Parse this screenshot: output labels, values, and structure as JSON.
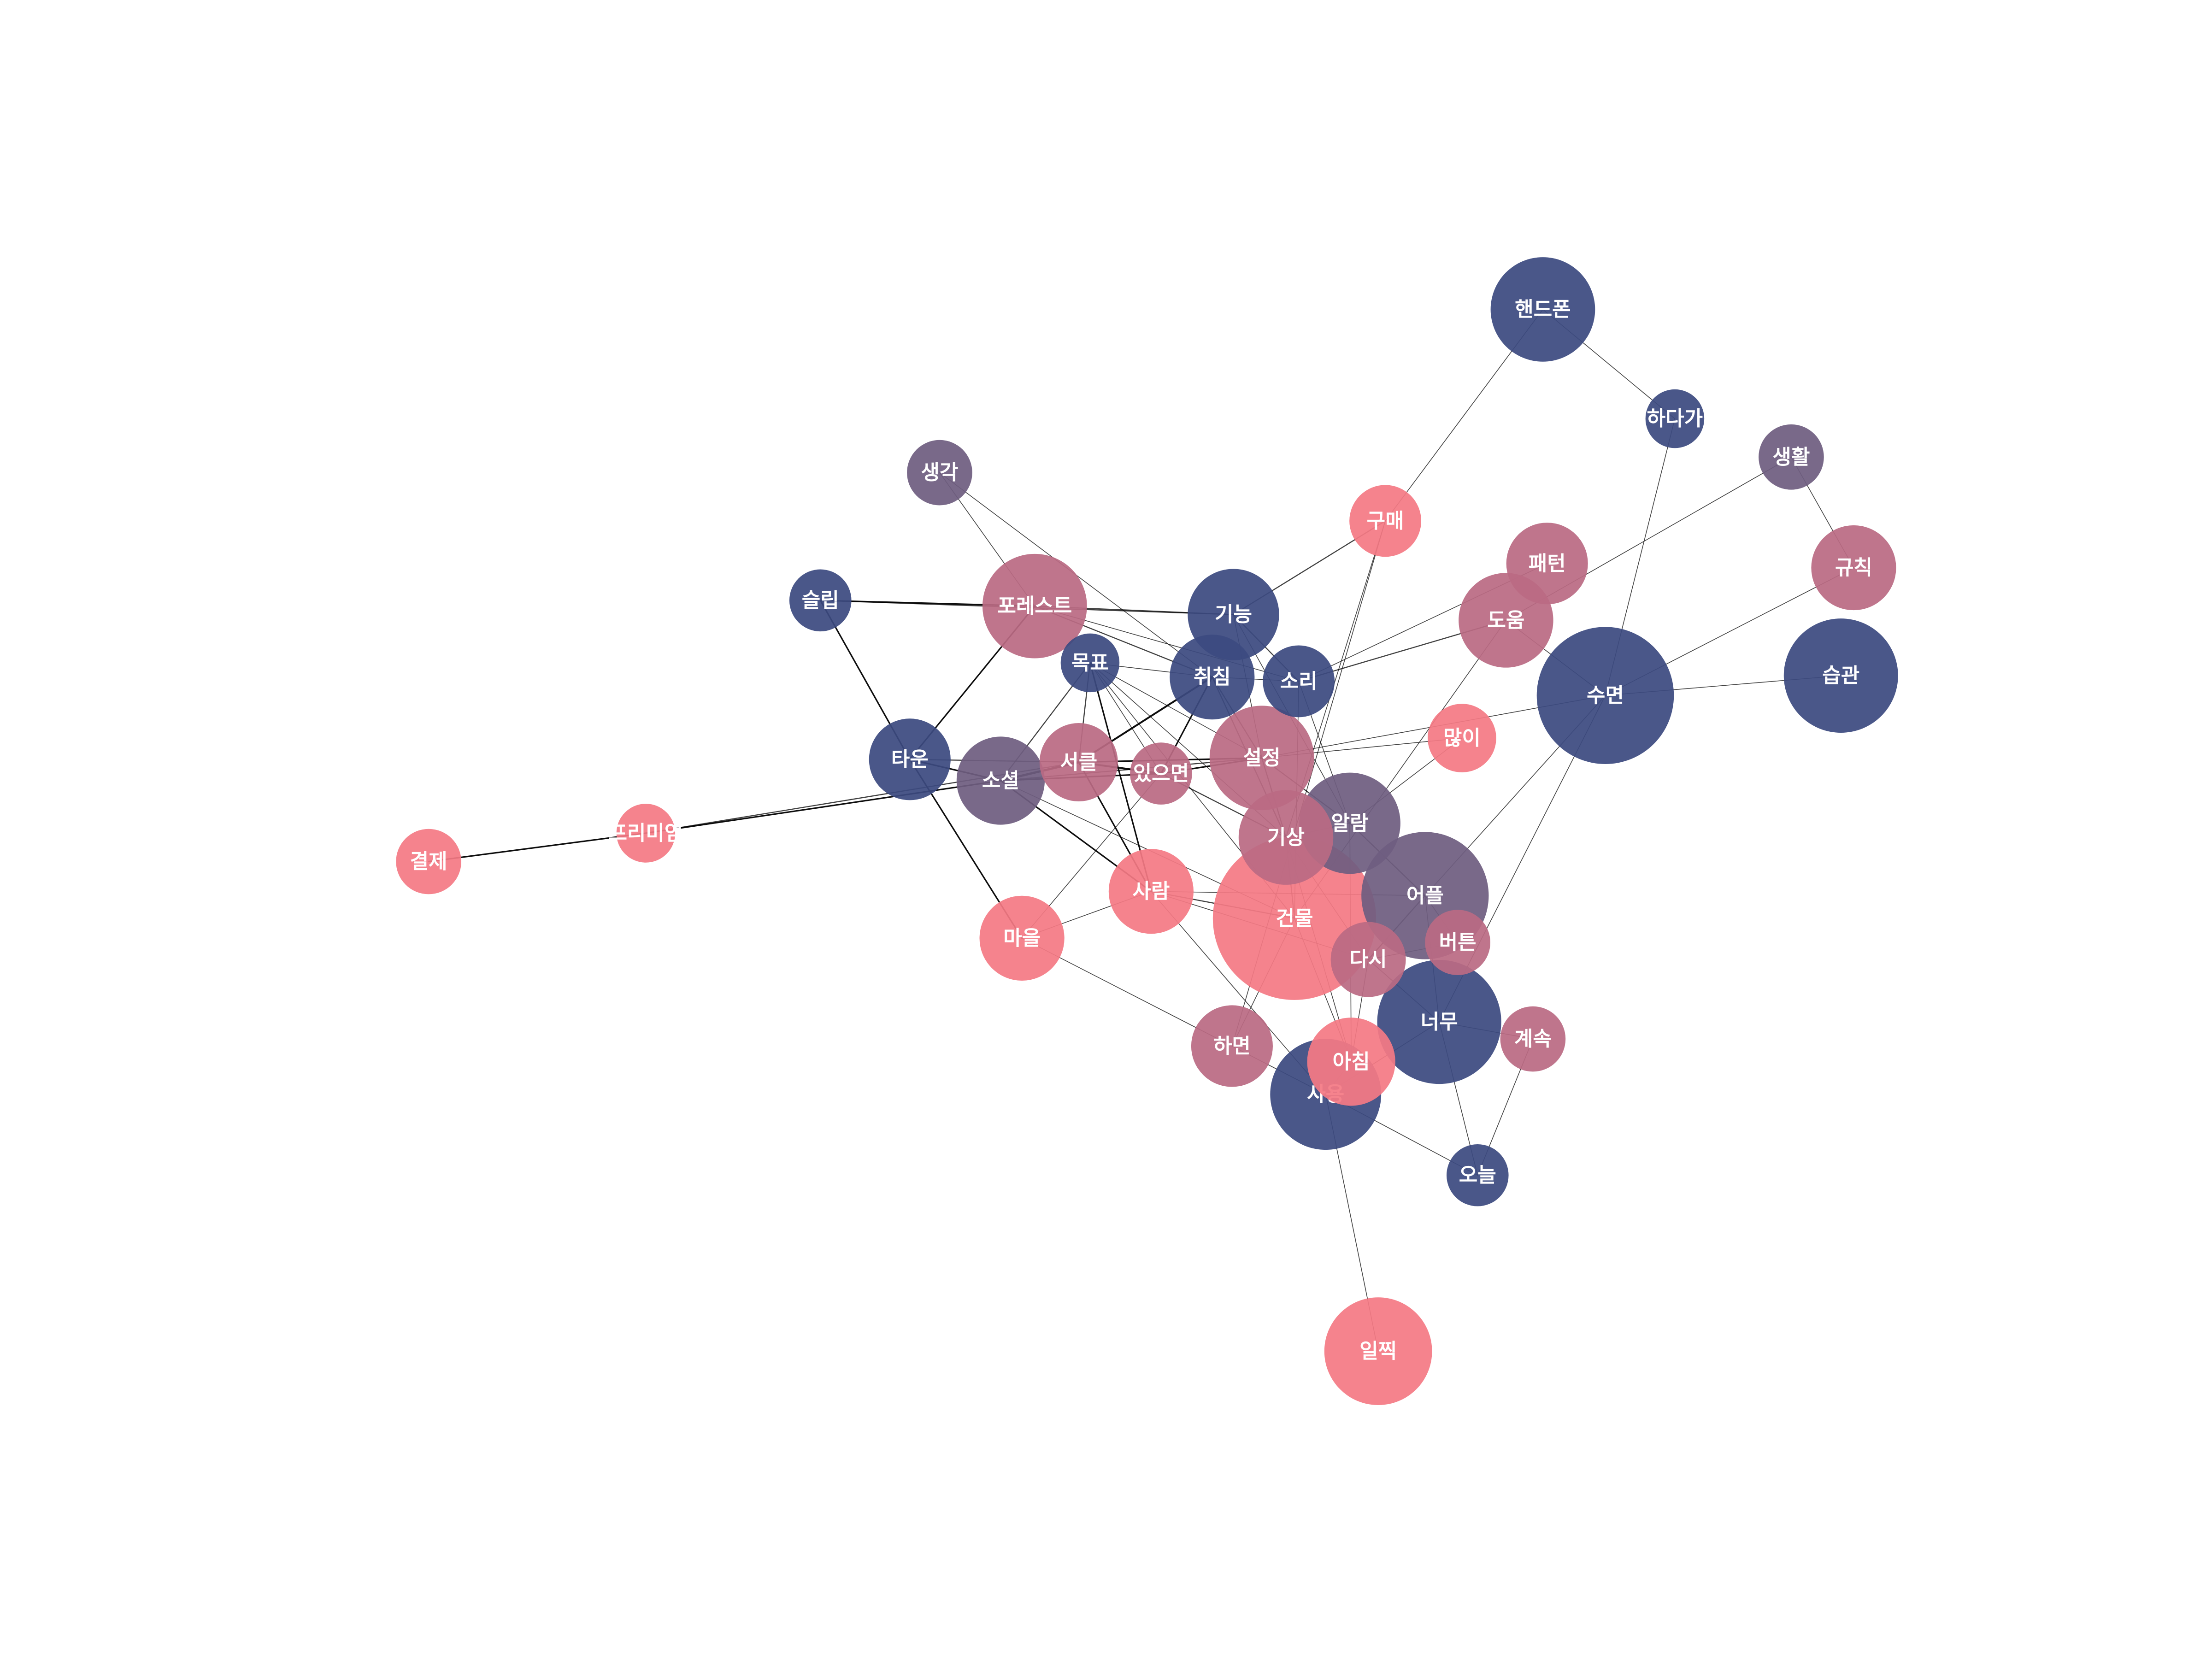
{
  "palette": {
    "pink": "#F47A84",
    "rose": "#BA6A83",
    "mauve": "#6F5E80",
    "navy": "#3C4A80",
    "edge": "#000000"
  },
  "nodes": [
    {
      "id": "결제",
      "label": "결제",
      "group": "pink",
      "weight": 1.0
    },
    {
      "id": "프리미엄",
      "label": "프리미엄",
      "group": "pink",
      "weight": 0.9
    },
    {
      "id": "생각",
      "label": "생각",
      "group": "mauve",
      "weight": 1.0
    },
    {
      "id": "슬립",
      "label": "슬립",
      "group": "navy",
      "weight": 0.95
    },
    {
      "id": "포레스트",
      "label": "포레스트",
      "group": "rose",
      "weight": 1.6
    },
    {
      "id": "타운",
      "label": "타운",
      "group": "navy",
      "weight": 1.25
    },
    {
      "id": "소셜",
      "label": "소셜",
      "group": "mauve",
      "weight": 1.35
    },
    {
      "id": "목표",
      "label": "목표",
      "group": "navy",
      "weight": 0.9
    },
    {
      "id": "서클",
      "label": "서클",
      "group": "rose",
      "weight": 1.2
    },
    {
      "id": "있으면",
      "label": "있으면",
      "group": "rose",
      "weight": 0.95
    },
    {
      "id": "기능",
      "label": "기능",
      "group": "navy",
      "weight": 1.4
    },
    {
      "id": "취침",
      "label": "취침",
      "group": "navy",
      "weight": 1.3
    },
    {
      "id": "소리",
      "label": "소리",
      "group": "navy",
      "weight": 1.1
    },
    {
      "id": "설정",
      "label": "설정",
      "group": "rose",
      "weight": 1.6
    },
    {
      "id": "마을",
      "label": "마을",
      "group": "pink",
      "weight": 1.3
    },
    {
      "id": "사람",
      "label": "사람",
      "group": "pink",
      "weight": 1.3
    },
    {
      "id": "기상",
      "label": "기상",
      "group": "rose",
      "weight": 1.45
    },
    {
      "id": "알람",
      "label": "알람",
      "group": "mauve",
      "weight": 1.55
    },
    {
      "id": "건물",
      "label": "건물",
      "group": "pink",
      "weight": 2.5
    },
    {
      "id": "구매",
      "label": "구매",
      "group": "pink",
      "weight": 1.1
    },
    {
      "id": "핸드폰",
      "label": "핸드폰",
      "group": "navy",
      "weight": 1.6
    },
    {
      "id": "하다가",
      "label": "하다가",
      "group": "navy",
      "weight": 0.9
    },
    {
      "id": "생활",
      "label": "생활",
      "group": "mauve",
      "weight": 1.0
    },
    {
      "id": "규칙",
      "label": "규칙",
      "group": "rose",
      "weight": 1.3
    },
    {
      "id": "패턴",
      "label": "패턴",
      "group": "rose",
      "weight": 1.25
    },
    {
      "id": "도움",
      "label": "도움",
      "group": "rose",
      "weight": 1.45
    },
    {
      "id": "수면",
      "label": "수면",
      "group": "navy",
      "weight": 2.1
    },
    {
      "id": "습관",
      "label": "습관",
      "group": "navy",
      "weight": 1.75
    },
    {
      "id": "많이",
      "label": "많이",
      "group": "pink",
      "weight": 1.05
    },
    {
      "id": "어플",
      "label": "어플",
      "group": "mauve",
      "weight": 1.95
    },
    {
      "id": "버튼",
      "label": "버튼",
      "group": "rose",
      "weight": 1.0
    },
    {
      "id": "다시",
      "label": "다시",
      "group": "rose",
      "weight": 1.15
    },
    {
      "id": "너무",
      "label": "너무",
      "group": "navy",
      "weight": 1.9
    },
    {
      "id": "계속",
      "label": "계속",
      "group": "rose",
      "weight": 1.0
    },
    {
      "id": "하면",
      "label": "하면",
      "group": "rose",
      "weight": 1.25
    },
    {
      "id": "아침",
      "label": "아침",
      "group": "pink",
      "weight": 1.35
    },
    {
      "id": "사용",
      "label": "사용",
      "group": "navy",
      "weight": 1.7
    },
    {
      "id": "오늘",
      "label": "오늘",
      "group": "navy",
      "weight": 0.95
    },
    {
      "id": "일찍",
      "label": "일찍",
      "group": "pink",
      "weight": 1.65
    }
  ],
  "edges": [
    [
      "결제",
      "프리미엄",
      2
    ],
    [
      "프리미엄",
      "소셜",
      2
    ],
    [
      "프리미엄",
      "서클",
      1.5
    ],
    [
      "생각",
      "포레스트",
      1
    ],
    [
      "생각",
      "취침",
      1
    ],
    [
      "슬립",
      "포레스트",
      2
    ],
    [
      "슬립",
      "타운",
      2
    ],
    [
      "슬립",
      "기능",
      1.5
    ],
    [
      "포레스트",
      "타운",
      2
    ],
    [
      "포레스트",
      "기능",
      1.5
    ],
    [
      "포레스트",
      "취침",
      1.5
    ],
    [
      "포레스트",
      "소리",
      1
    ],
    [
      "타운",
      "소셜",
      2
    ],
    [
      "타운",
      "마을",
      2
    ],
    [
      "타운",
      "서클",
      1.5
    ],
    [
      "소셜",
      "서클",
      3
    ],
    [
      "소셜",
      "있으면",
      2
    ],
    [
      "소셜",
      "사람",
      2
    ],
    [
      "소셜",
      "목표",
      1.5
    ],
    [
      "소셜",
      "설정",
      1.5
    ],
    [
      "소셜",
      "건물",
      1
    ],
    [
      "서클",
      "있으면",
      2.5
    ],
    [
      "서클",
      "취침",
      2.5
    ],
    [
      "서클",
      "설정",
      2
    ],
    [
      "서클",
      "사람",
      2
    ],
    [
      "서클",
      "목표",
      1.5
    ],
    [
      "있으면",
      "설정",
      2
    ],
    [
      "있으면",
      "취침",
      2
    ],
    [
      "있으면",
      "기상",
      1.5
    ],
    [
      "있으면",
      "목표",
      1
    ],
    [
      "있으면",
      "마을",
      1
    ],
    [
      "목표",
      "취침",
      1
    ],
    [
      "목표",
      "사람",
      2
    ],
    [
      "목표",
      "기상",
      1
    ],
    [
      "목표",
      "건물",
      1
    ],
    [
      "목표",
      "설정",
      1
    ],
    [
      "기능",
      "소리",
      1.5
    ],
    [
      "기능",
      "구매",
      1.5
    ],
    [
      "기능",
      "설정",
      1
    ],
    [
      "기능",
      "알람",
      1
    ],
    [
      "취침",
      "설정",
      1.5
    ],
    [
      "취침",
      "기상",
      1.5
    ],
    [
      "취침",
      "소리",
      1
    ],
    [
      "소리",
      "도움",
      1.5
    ],
    [
      "소리",
      "알람",
      1
    ],
    [
      "소리",
      "패턴",
      1
    ],
    [
      "소리",
      "건물",
      1
    ],
    [
      "설정",
      "기상",
      1.5
    ],
    [
      "설정",
      "알람",
      1.5
    ],
    [
      "설정",
      "많이",
      1
    ],
    [
      "설정",
      "수면",
      1
    ],
    [
      "사람",
      "건물",
      1.5
    ],
    [
      "사람",
      "마을",
      1
    ],
    [
      "사람",
      "어플",
      1
    ],
    [
      "사람",
      "사용",
      1
    ],
    [
      "사람",
      "다시",
      1
    ],
    [
      "마을",
      "하면",
      1
    ],
    [
      "기상",
      "알람",
      1.5
    ],
    [
      "기상",
      "건물",
      1.5
    ],
    [
      "기상",
      "다시",
      1
    ],
    [
      "기상",
      "아침",
      1
    ],
    [
      "알람",
      "어플",
      1.5
    ],
    [
      "알람",
      "많이",
      1
    ],
    [
      "알람",
      "아침",
      1
    ],
    [
      "구매",
      "하면",
      1
    ],
    [
      "구매",
      "기상",
      1
    ],
    [
      "핸드폰",
      "하다가",
      1
    ],
    [
      "핸드폰",
      "구매",
      1
    ],
    [
      "하다가",
      "수면",
      1
    ],
    [
      "생활",
      "규칙",
      1
    ],
    [
      "생활",
      "도움",
      1
    ],
    [
      "규칙",
      "수면",
      1
    ],
    [
      "도움",
      "수면",
      1
    ],
    [
      "도움",
      "건물",
      1
    ],
    [
      "수면",
      "습관",
      1
    ],
    [
      "수면",
      "어플",
      1
    ],
    [
      "수면",
      "너무",
      1
    ],
    [
      "어플",
      "버튼",
      1
    ],
    [
      "어플",
      "다시",
      1.5
    ],
    [
      "어플",
      "너무",
      1
    ],
    [
      "다시",
      "버튼",
      1
    ],
    [
      "다시",
      "아침",
      1
    ],
    [
      "다시",
      "너무",
      1
    ],
    [
      "너무",
      "계속",
      1
    ],
    [
      "너무",
      "사용",
      1
    ],
    [
      "너무",
      "오늘",
      1
    ],
    [
      "계속",
      "오늘",
      1
    ],
    [
      "건물",
      "하면",
      1
    ],
    [
      "건물",
      "아침",
      1
    ],
    [
      "하면",
      "사용",
      1
    ],
    [
      "아침",
      "사용",
      1
    ],
    [
      "사용",
      "오늘",
      1
    ],
    [
      "사용",
      "일찍",
      1
    ]
  ]
}
